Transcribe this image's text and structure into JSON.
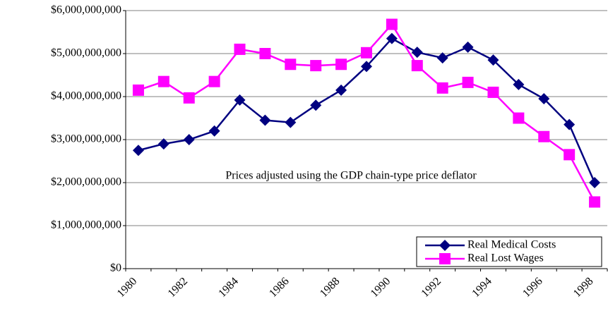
{
  "chart_data": {
    "type": "line",
    "annotation": "Prices adjusted using the GDP chain-type price deflator",
    "categories": [
      "1980",
      null,
      "1982",
      null,
      "1984",
      null,
      "1986",
      null,
      "1988",
      null,
      "1990",
      null,
      "1992",
      null,
      "1994",
      null,
      "1996",
      null,
      "1998"
    ],
    "series": [
      {
        "name": "Real Medical Costs",
        "color": "#000080",
        "marker": "diamond",
        "values": [
          2750000000,
          2900000000,
          3000000000,
          3200000000,
          3920000000,
          3450000000,
          3400000000,
          3800000000,
          4150000000,
          4700000000,
          5350000000,
          5030000000,
          4900000000,
          5150000000,
          4850000000,
          4280000000,
          3950000000,
          3350000000,
          2000000000
        ]
      },
      {
        "name": "Real Lost Wages",
        "color": "#ff00ff",
        "marker": "square",
        "values": [
          4150000000,
          4350000000,
          3970000000,
          4350000000,
          5100000000,
          5000000000,
          4750000000,
          4720000000,
          4750000000,
          5020000000,
          5680000000,
          4720000000,
          4200000000,
          4330000000,
          4100000000,
          3500000000,
          3070000000,
          2650000000,
          1550000000
        ]
      }
    ],
    "ylim": [
      0,
      6000000000
    ],
    "yticks": [
      {
        "value": 0,
        "label": "$0"
      },
      {
        "value": 1000000000,
        "label": "$1,000,000,000"
      },
      {
        "value": 2000000000,
        "label": "$2,000,000,000"
      },
      {
        "value": 3000000000,
        "label": "$3,000,000,000"
      },
      {
        "value": 4000000000,
        "label": "$4,000,000,000"
      },
      {
        "value": 5000000000,
        "label": "$5,000,000,000"
      },
      {
        "value": 6000000000,
        "label": "$6,000,000,000"
      }
    ],
    "grid": true,
    "legend": "lower right"
  }
}
